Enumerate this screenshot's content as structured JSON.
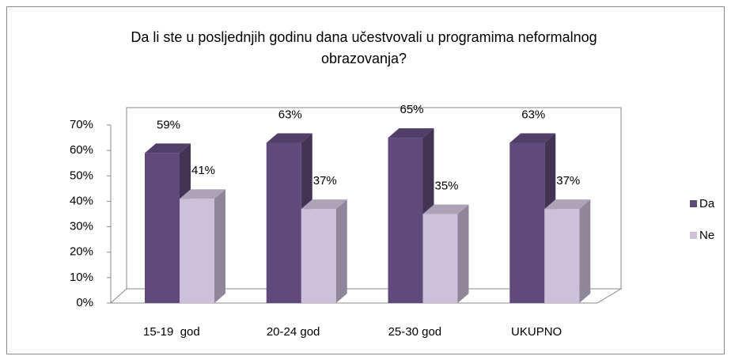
{
  "chart_data": {
    "type": "bar3d",
    "title": "Da li ste u posljednjih godinu dana učestvovali u programima neformalnog obrazovanja?",
    "categories": [
      "15-19  god",
      "20-24 god",
      "25-30 god",
      "UKUPNO"
    ],
    "series": [
      {
        "name": "Da",
        "color": "#604a7b",
        "values": [
          59,
          63,
          65,
          63
        ],
        "value_labels": [
          "59%",
          "63%",
          "65%",
          "63%"
        ]
      },
      {
        "name": "Ne",
        "color": "#ccc0da",
        "values": [
          41,
          37,
          35,
          37
        ],
        "value_labels": [
          "41%",
          "37%",
          "35%",
          "37%"
        ]
      }
    ],
    "ylim": [
      0,
      70
    ],
    "yticks": [
      {
        "value": 0,
        "label": "0%"
      },
      {
        "value": 10,
        "label": "10%"
      },
      {
        "value": 20,
        "label": "20%"
      },
      {
        "value": 30,
        "label": "30%"
      },
      {
        "value": 40,
        "label": "40%"
      },
      {
        "value": 50,
        "label": "50%"
      },
      {
        "value": 60,
        "label": "60%"
      },
      {
        "value": 70,
        "label": "70%"
      }
    ],
    "legend": "right"
  }
}
